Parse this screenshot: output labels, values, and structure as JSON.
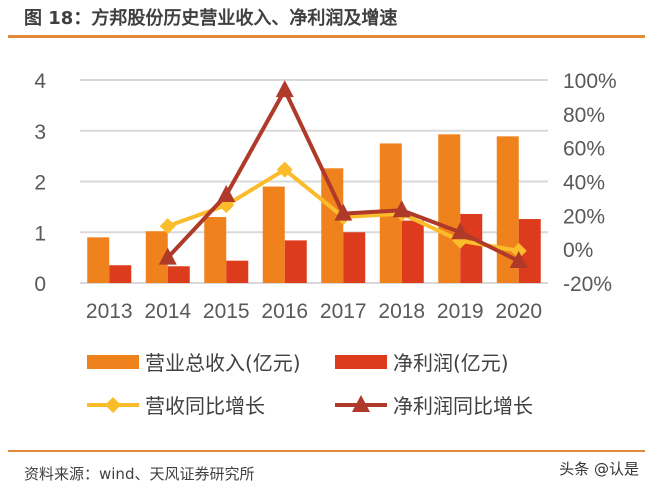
{
  "title": "图 18：方邦股份历史营业收入、净利润及增速",
  "source": "资料来源：wind、天风证券研究所",
  "watermark": "头条 @认是",
  "chart_data": {
    "type": "bar+line",
    "categories": [
      "2013",
      "2014",
      "2015",
      "2016",
      "2017",
      "2018",
      "2019",
      "2020"
    ],
    "left_axis": {
      "ylim": [
        0,
        4
      ],
      "ticks": [
        "0",
        "1",
        "2",
        "3",
        "4"
      ]
    },
    "right_axis": {
      "ylim": [
        -20,
        100
      ],
      "ticks": [
        "-20%",
        "0%",
        "20%",
        "40%",
        "60%",
        "80%",
        "100%"
      ]
    },
    "grid": true,
    "legend_position": "bottom",
    "series": [
      {
        "name": "营业总收入(亿元)",
        "type": "bar",
        "axis": "left",
        "color": "#f0821e",
        "values": [
          0.9,
          1.02,
          1.3,
          1.9,
          2.26,
          2.75,
          2.93,
          2.89
        ]
      },
      {
        "name": "净利润(亿元)",
        "type": "bar",
        "axis": "left",
        "color": "#dc3c1c",
        "values": [
          0.35,
          0.33,
          0.44,
          0.84,
          1.0,
          1.23,
          1.36,
          1.26
        ]
      },
      {
        "name": "营收同比增长",
        "type": "line",
        "axis": "right",
        "marker": "diamond",
        "color": "#fbbc2c",
        "values": [
          null,
          13.6,
          26,
          47,
          19,
          21,
          5,
          -1
        ]
      },
      {
        "name": "净利润同比增长",
        "type": "line",
        "axis": "right",
        "marker": "triangle",
        "color": "#b03a2a",
        "values": [
          null,
          -5,
          32,
          94,
          21,
          23,
          10,
          -7
        ]
      }
    ]
  }
}
